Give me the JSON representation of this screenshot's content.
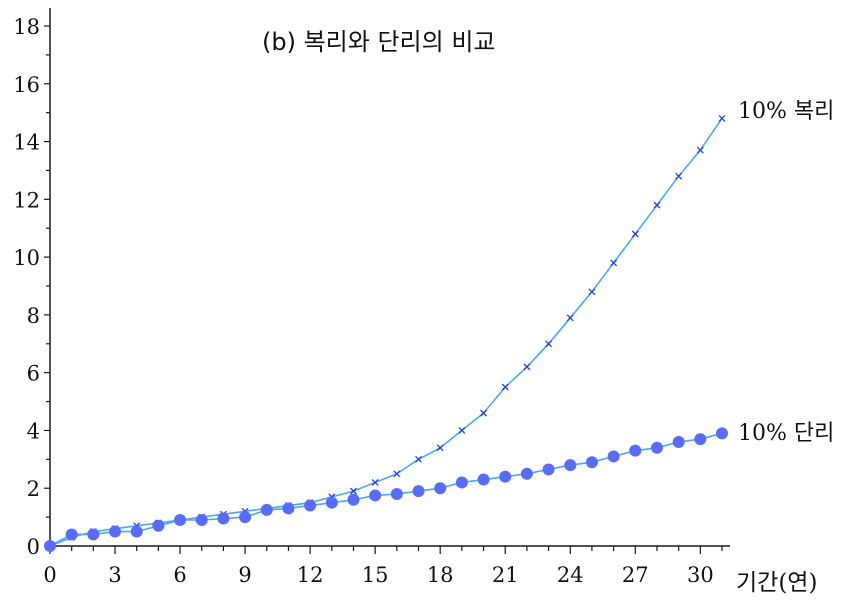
{
  "chart_data": {
    "type": "line",
    "title": "(b) 복리와 단리의 비교",
    "xlabel": "기간(연)",
    "ylabel": "",
    "xlim": [
      0,
      31
    ],
    "ylim": [
      0,
      18
    ],
    "xticks": [
      0,
      3,
      6,
      9,
      12,
      15,
      18,
      21,
      24,
      27,
      30
    ],
    "xtick_labels": [
      "0",
      "3",
      "6",
      "9",
      "12",
      "15",
      "18",
      "21",
      "24",
      "27",
      "30"
    ],
    "yticks": [
      0,
      2,
      4,
      6,
      8,
      10,
      12,
      14,
      16,
      18
    ],
    "ytick_labels": [
      "0",
      "2",
      "4",
      "6",
      "8",
      "10",
      "12",
      "14",
      "16",
      "18"
    ],
    "grid": false,
    "legend": "series labels at right end of lines",
    "colors": {
      "compound_line": "#4aa8f0",
      "compound_marker": "#2b3fd6",
      "simple_line": "#4aa8f0",
      "simple_marker": "#5a6cf5",
      "axis": "#1a1a1a"
    },
    "series": [
      {
        "name": "10% 복리",
        "marker": "x",
        "x": [
          0,
          1,
          2,
          3,
          4,
          5,
          6,
          7,
          8,
          9,
          10,
          11,
          12,
          13,
          14,
          15,
          16,
          17,
          18,
          19,
          20,
          21,
          22,
          23,
          24,
          25,
          26,
          27,
          28,
          29,
          30,
          31
        ],
        "values": [
          0.0,
          0.3,
          0.5,
          0.6,
          0.7,
          0.8,
          0.9,
          1.0,
          1.1,
          1.2,
          1.3,
          1.4,
          1.5,
          1.7,
          1.9,
          2.2,
          2.5,
          3.0,
          3.4,
          4.0,
          4.6,
          5.5,
          6.2,
          7.0,
          7.9,
          8.8,
          9.8,
          10.8,
          11.8,
          12.8,
          13.7,
          14.8
        ]
      },
      {
        "name": "10% 단리",
        "marker": "circle",
        "x": [
          0,
          1,
          2,
          3,
          4,
          5,
          6,
          7,
          8,
          9,
          10,
          11,
          12,
          13,
          14,
          15,
          16,
          17,
          18,
          19,
          20,
          21,
          22,
          23,
          24,
          25,
          26,
          27,
          28,
          29,
          30,
          31
        ],
        "values": [
          0.0,
          0.4,
          0.4,
          0.5,
          0.5,
          0.7,
          0.9,
          0.9,
          0.95,
          1.0,
          1.25,
          1.3,
          1.4,
          1.5,
          1.6,
          1.75,
          1.8,
          1.9,
          2.0,
          2.2,
          2.3,
          2.4,
          2.5,
          2.65,
          2.8,
          2.9,
          3.1,
          3.3,
          3.4,
          3.6,
          3.7,
          3.9
        ]
      }
    ]
  }
}
